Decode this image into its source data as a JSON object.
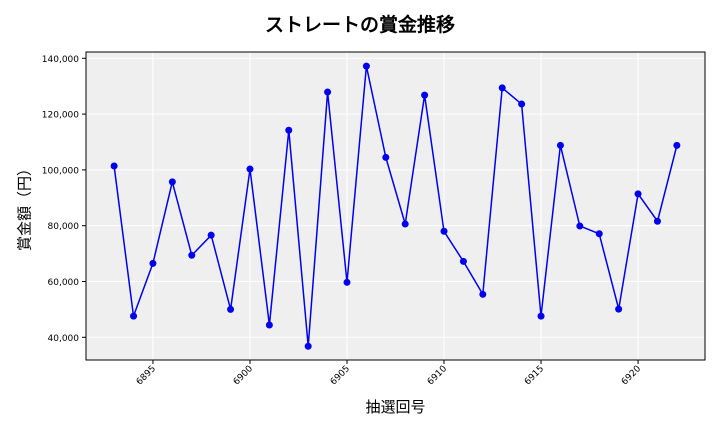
{
  "chart_data": {
    "type": "line",
    "title": "ストレートの賞金推移",
    "xlabel": "抽選回号",
    "ylabel": "賞金額（円）",
    "x": [
      6893,
      6894,
      6895,
      6896,
      6897,
      6898,
      6899,
      6900,
      6901,
      6902,
      6903,
      6904,
      6905,
      6906,
      6907,
      6908,
      6909,
      6910,
      6911,
      6912,
      6913,
      6914,
      6915,
      6916,
      6917,
      6918,
      6919,
      6920,
      6921,
      6922
    ],
    "series": [
      {
        "name": "ストレート",
        "color": "#0000ee",
        "marker": "circle",
        "values": [
          101400,
          47600,
          66500,
          95700,
          69400,
          76600,
          50000,
          100300,
          44400,
          114200,
          36800,
          127900,
          59700,
          137200,
          104500,
          80600,
          126800,
          78000,
          67200,
          55400,
          129400,
          123600,
          47600,
          108800,
          79900,
          77100,
          50100,
          91400,
          81600,
          108800
        ]
      }
    ],
    "xticks": [
      6895,
      6900,
      6905,
      6910,
      6915,
      6920
    ],
    "yticks": [
      40000,
      60000,
      80000,
      100000,
      120000,
      140000
    ],
    "ytick_labels": [
      "40,000",
      "60,000",
      "80,000",
      "100,000",
      "120,000",
      "140,000"
    ],
    "xlim": [
      6891.55,
      6923.45
    ],
    "ylim": [
      31860,
      142260
    ],
    "grid": true,
    "legend": null,
    "colors": {
      "plot_background": "#efefef",
      "grid": "#ffffff",
      "line": "#0000ee",
      "axis": "#000000"
    }
  }
}
